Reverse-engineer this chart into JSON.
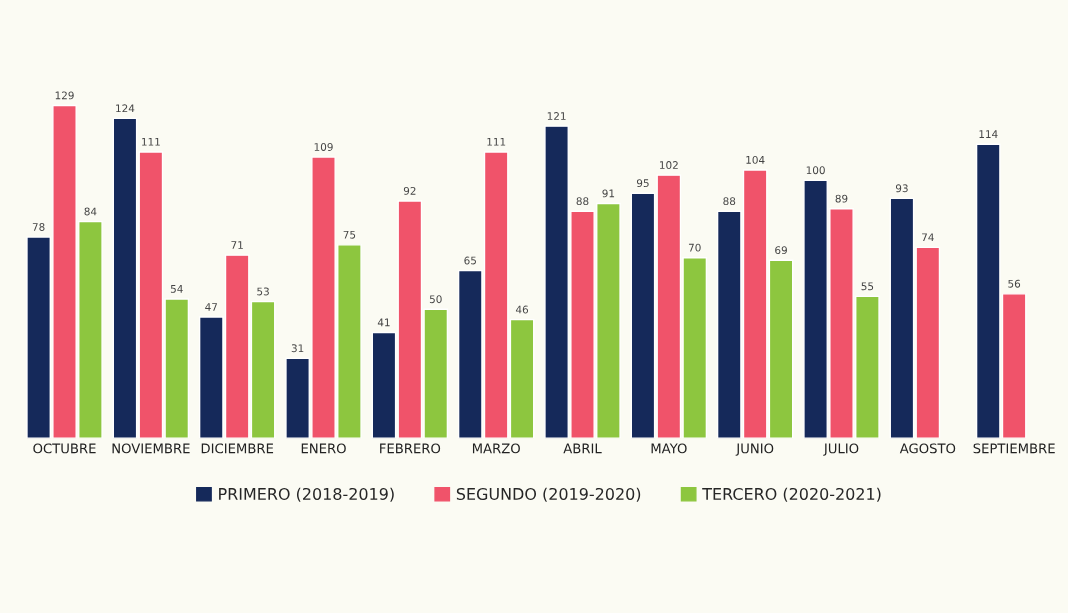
{
  "chart_data": {
    "type": "bar",
    "categories": [
      "OCTUBRE",
      "NOVIEMBRE",
      "DICIEMBRE",
      "ENERO",
      "FEBRERO",
      "MARZO",
      "ABRIL",
      "MAYO",
      "JUNIO",
      "JULIO",
      "AGOSTO",
      "SEPTIEMBRE"
    ],
    "series": [
      {
        "name": "PRIMERO (2018-2019)",
        "color": "#15295a",
        "values": [
          78,
          124,
          47,
          31,
          41,
          65,
          121,
          95,
          88,
          100,
          93,
          114
        ]
      },
      {
        "name": "SEGUNDO (2019-2020)",
        "color": "#f0536a",
        "values": [
          129,
          111,
          71,
          109,
          92,
          111,
          88,
          102,
          104,
          89,
          74,
          56
        ]
      },
      {
        "name": "TERCERO (2020-2021)",
        "color": "#8dc63f",
        "values": [
          84,
          54,
          53,
          75,
          50,
          46,
          91,
          70,
          69,
          55,
          null,
          null
        ]
      }
    ],
    "tick_labels": "x",
    "data_labels": true,
    "grid": false,
    "legend": "bottom"
  }
}
